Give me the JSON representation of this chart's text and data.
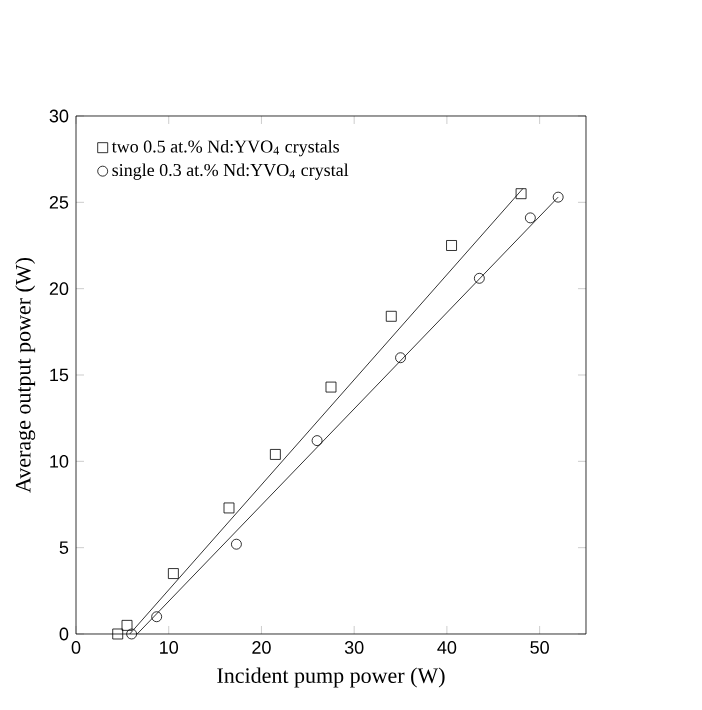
{
  "chart_data": {
    "type": "scatter",
    "xlabel": "Incident pump power (W)",
    "ylabel": "Average output power (W)",
    "xlim": [
      0,
      55
    ],
    "ylim": [
      0,
      30
    ],
    "xticks": [
      0,
      10,
      20,
      30,
      40,
      50
    ],
    "yticks": [
      0,
      5,
      10,
      15,
      20,
      25,
      30
    ],
    "legend": "top left",
    "grid": false,
    "series": [
      {
        "name": "two 0.5 at.% Nd:YVO$_{4}$ crystals",
        "color": "#000000",
        "marker": "square",
        "x": [
          4.5,
          5.5,
          10.5,
          16.5,
          21.5,
          27.5,
          34,
          40.5,
          48
        ],
        "values": [
          0,
          0.5,
          3.5,
          7.3,
          10.4,
          14.3,
          18.4,
          22.5,
          25.5
        ]
      },
      {
        "name": "single 0.3 at.% Nd:YVO$_{4}$ crystal",
        "color": "#000000",
        "marker": "circle",
        "x": [
          6,
          8.7,
          17.3,
          26,
          35,
          43.5,
          49,
          52
        ],
        "values": [
          0,
          1.0,
          5.2,
          11.2,
          16.0,
          20.6,
          24.1,
          25.3
        ]
      },
      {
        "type": "line",
        "color": "#000000",
        "marker": "none",
        "x": [
          5.8,
          48.2
        ],
        "values": [
          0,
          25.8
        ]
      },
      {
        "type": "line",
        "color": "#000000",
        "marker": "none",
        "x": [
          6.6,
          52
        ],
        "values": [
          0,
          25.3
        ]
      }
    ]
  }
}
